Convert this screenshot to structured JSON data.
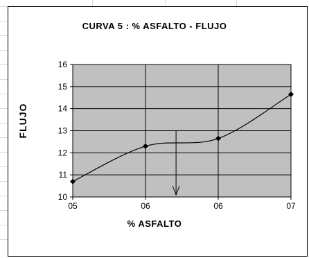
{
  "chart_data": {
    "type": "line",
    "title": "CURVA 5 : % ASFALTO  -  FLUJO",
    "xlabel": "% ASFALTO",
    "ylabel": "FLUJO",
    "x_tick_labels": [
      "05",
      "06",
      "06",
      "07"
    ],
    "y_tick_labels": [
      "10",
      "11",
      "12",
      "13",
      "14",
      "15",
      "16"
    ],
    "ylim": [
      10,
      16
    ],
    "grid": true,
    "series": [
      {
        "values": [
          10.7,
          12.3,
          12.65,
          14.65
        ]
      }
    ],
    "annotation": {
      "type": "down-arrow",
      "x_position_between_ticks": [
        1,
        2
      ],
      "fraction": 0.42,
      "from_y": 13.0,
      "to_y": 10.0
    }
  },
  "colors": {
    "plot_background": "#c0c0c0",
    "grid": "#000000",
    "line": "#000000",
    "marker": "#000000"
  }
}
